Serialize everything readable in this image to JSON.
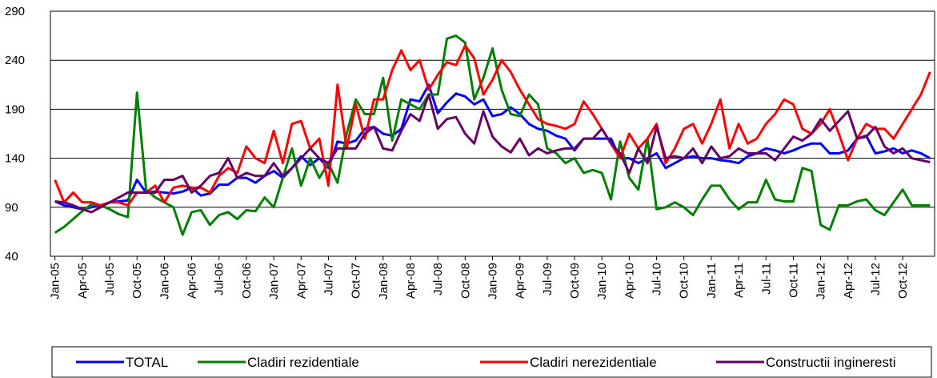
{
  "chart_data": {
    "type": "line",
    "categories": [
      "Jan-05",
      null,
      null,
      "Apr-05",
      null,
      null,
      "Jul-05",
      null,
      null,
      "Oct-05",
      null,
      null,
      "Jan-06",
      null,
      null,
      "Apr-06",
      null,
      null,
      "Jul-06",
      null,
      null,
      "Oct-06",
      null,
      null,
      "Jan-07",
      null,
      null,
      "Apr-07",
      null,
      null,
      "Jul-07",
      null,
      null,
      "Oct-07",
      null,
      null,
      "Jan-08",
      null,
      null,
      "Apr-08",
      null,
      null,
      "Jul-08",
      null,
      null,
      "Oct-08",
      null,
      null,
      "Jan-09",
      null,
      null,
      "Apr-09",
      null,
      null,
      "Jul-09",
      null,
      null,
      "Oct-09",
      null,
      null,
      "Jan-10",
      null,
      null,
      "Apr-10",
      null,
      null,
      "Jul-10",
      null,
      null,
      "Oct-10",
      null,
      null,
      "Jan-11",
      null,
      null,
      "Apr-11",
      null,
      null,
      "Jul-11",
      null,
      null,
      "Oct-11",
      null,
      null,
      "Jan-12",
      null,
      null,
      "Apr-12",
      null,
      null,
      "Jul-12",
      null,
      null,
      "Oct-12",
      null,
      null,
      null
    ],
    "series": [
      {
        "name": "TOTAL",
        "color": "#0000ff",
        "values": [
          96,
          92,
          90,
          88,
          90,
          92,
          95,
          96,
          97,
          118,
          105,
          106,
          105,
          104,
          106,
          110,
          102,
          104,
          113,
          113,
          120,
          120,
          115,
          122,
          127,
          120,
          130,
          142,
          133,
          140,
          130,
          157,
          155,
          158,
          170,
          172,
          165,
          163,
          170,
          200,
          198,
          215,
          186,
          197,
          206,
          203,
          195,
          200,
          183,
          185,
          192,
          185,
          175,
          170,
          168,
          163,
          160,
          148,
          160,
          160,
          160,
          160,
          140,
          140,
          135,
          140,
          145,
          130,
          135,
          140,
          142,
          140,
          140,
          138,
          137,
          135,
          142,
          145,
          150,
          148,
          145,
          148,
          152,
          155,
          155,
          145,
          145,
          148,
          160,
          163,
          145,
          147,
          150,
          145,
          148,
          145,
          140
        ]
      },
      {
        "name": "Cladiri rezidentiale",
        "color": "#008000",
        "values": [
          64,
          70,
          78,
          86,
          93,
          92,
          88,
          83,
          80,
          207,
          108,
          100,
          95,
          90,
          62,
          85,
          87,
          72,
          82,
          85,
          78,
          87,
          86,
          100,
          90,
          120,
          150,
          112,
          140,
          120,
          135,
          115,
          165,
          200,
          185,
          185,
          222,
          158,
          200,
          195,
          190,
          205,
          205,
          262,
          265,
          258,
          200,
          222,
          252,
          210,
          185,
          183,
          205,
          195,
          150,
          145,
          135,
          140,
          125,
          128,
          125,
          98,
          157,
          120,
          108,
          160,
          88,
          90,
          95,
          90,
          82,
          98,
          112,
          112,
          98,
          88,
          95,
          95,
          118,
          98,
          96,
          96,
          130,
          127,
          72,
          67,
          92,
          92,
          96,
          98,
          87,
          82,
          95,
          108,
          92,
          92,
          92
        ]
      },
      {
        "name": "Cladiri nerezidentiale",
        "color": "#ff0000",
        "values": [
          118,
          95,
          105,
          95,
          95,
          92,
          95,
          95,
          92,
          105,
          105,
          112,
          95,
          110,
          112,
          110,
          110,
          105,
          122,
          130,
          125,
          152,
          140,
          135,
          168,
          135,
          175,
          178,
          150,
          160,
          112,
          215,
          150,
          195,
          160,
          200,
          200,
          230,
          250,
          230,
          240,
          210,
          225,
          238,
          235,
          255,
          242,
          205,
          220,
          240,
          228,
          210,
          195,
          180,
          175,
          173,
          170,
          175,
          198,
          185,
          170,
          155,
          140,
          165,
          150,
          160,
          175,
          135,
          150,
          170,
          175,
          155,
          175,
          200,
          150,
          175,
          155,
          160,
          175,
          185,
          200,
          195,
          170,
          165,
          175,
          190,
          165,
          138,
          160,
          175,
          170,
          170,
          160,
          175,
          190,
          205,
          228
        ]
      },
      {
        "name": "Constructii ingineresti",
        "color": "#660066",
        "values": [
          96,
          95,
          92,
          88,
          85,
          90,
          95,
          100,
          105,
          105,
          105,
          105,
          118,
          118,
          122,
          105,
          112,
          122,
          125,
          140,
          120,
          125,
          122,
          122,
          135,
          122,
          130,
          140,
          150,
          140,
          135,
          150,
          150,
          150,
          165,
          172,
          150,
          148,
          168,
          185,
          178,
          205,
          170,
          180,
          182,
          165,
          155,
          188,
          162,
          152,
          146,
          160,
          143,
          150,
          145,
          148,
          150,
          150,
          160,
          160,
          170,
          155,
          145,
          125,
          150,
          135,
          172,
          140,
          142,
          140,
          150,
          135,
          152,
          140,
          142,
          150,
          145,
          145,
          145,
          138,
          150,
          162,
          158,
          165,
          180,
          168,
          178,
          188,
          160,
          162,
          172,
          152,
          145,
          150,
          140,
          138,
          136
        ]
      }
    ],
    "ylim": [
      40,
      290
    ],
    "yticks": [
      40,
      90,
      140,
      190,
      240,
      290
    ],
    "grid": true,
    "legend": "bottom"
  }
}
